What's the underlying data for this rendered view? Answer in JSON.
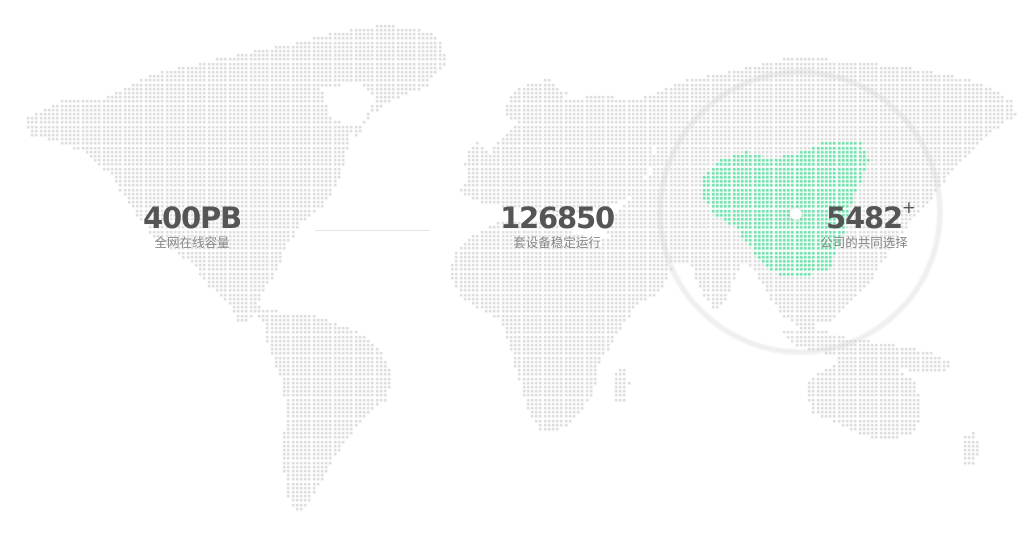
{
  "colors": {
    "background": "#ffffff",
    "dot_gray": "#d6d6d6",
    "dot_highlight": "#5fdca3",
    "value_text": "#555555",
    "label_text": "#888888",
    "divider": "#e6e6e6",
    "halo_outer": "#ececec",
    "halo_inner": "#f2f2f2"
  },
  "map": {
    "label": "world-dot-map",
    "highlighted_region": "China"
  },
  "stats": {
    "storage": {
      "value": "400PB",
      "label": "全网在线容量"
    },
    "devices": {
      "value": "126850",
      "label": "套设备稳定运行"
    },
    "companies": {
      "value": "5482",
      "suffix": "+",
      "label": "公司的共同选择"
    }
  }
}
